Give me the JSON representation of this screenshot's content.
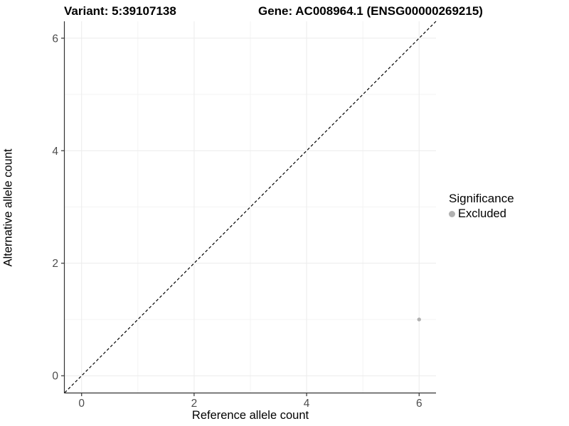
{
  "header": {
    "variant_title": "Variant: 5:39107138",
    "gene_title": "Gene: AC008964.1 (ENSG00000269215)"
  },
  "legend": {
    "title": "Significance",
    "items": [
      {
        "label": "Excluded",
        "color": "#b1b1b1"
      }
    ]
  },
  "chart_data": {
    "type": "scatter",
    "title": "Variant: 5:39107138   Gene: AC008964.1 (ENSG00000269215)",
    "xlabel": "Reference allele count",
    "ylabel": "Alternative allele count",
    "xlim": [
      -0.3,
      6.3
    ],
    "ylim": [
      -0.3,
      6.3
    ],
    "x_major_ticks": [
      0,
      2,
      4,
      6
    ],
    "y_major_ticks": [
      0,
      2,
      4,
      6
    ],
    "x_minor_ticks": [
      1,
      3,
      5
    ],
    "y_minor_ticks": [
      1,
      3,
      5
    ],
    "grid": true,
    "legend_position": "right",
    "series": [
      {
        "name": "Excluded",
        "color": "#b1b1b1",
        "points": [
          {
            "x": 6,
            "y": 1
          }
        ]
      }
    ],
    "reference_line": {
      "kind": "identity",
      "style": "dashed",
      "from": [
        -0.3,
        -0.3
      ],
      "to": [
        6.3,
        6.3
      ],
      "color": "#000000"
    }
  },
  "style": {
    "grid_major_color": "#ebebeb",
    "grid_minor_color": "#f3f3f3",
    "axis_line_color": "#333333",
    "tick_mark_color": "#333333",
    "tick_label_color": "#4d4d4d",
    "point_radius": 2.7,
    "legend_dot_color": "#b1b1b1"
  }
}
